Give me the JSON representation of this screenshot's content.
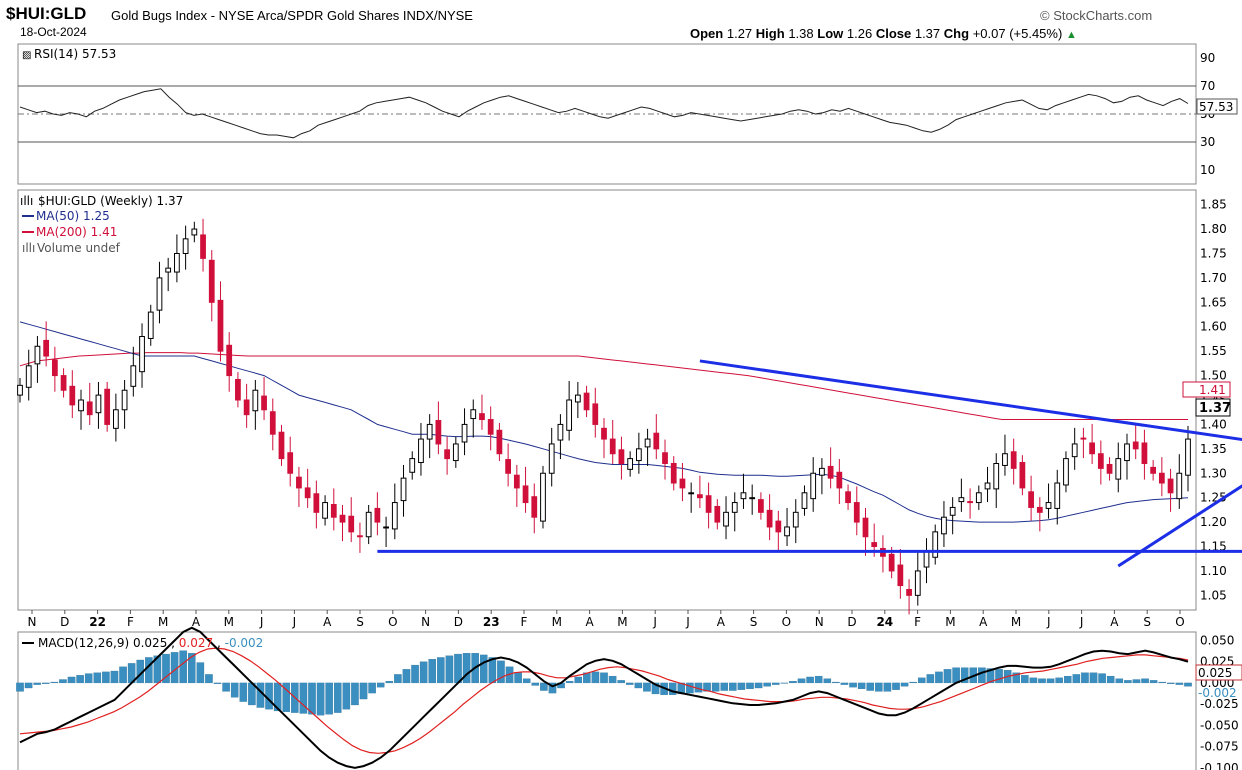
{
  "header": {
    "symbol": "$HUI:GLD",
    "description": "Gold Bugs Index - NYSE Arca/SPDR Gold Shares INDX/NYSE",
    "date": "18-Oct-2024",
    "source": "© StockCharts.com",
    "ohlc": {
      "open_label": "Open",
      "open": "1.27",
      "high_label": "High",
      "high": "1.38",
      "low_label": "Low",
      "low": "1.26",
      "close_label": "Close",
      "close": "1.37",
      "chg_label": "Chg",
      "chg": "+0.07 (+5.45%)"
    }
  },
  "chart_data": {
    "type": "candlestick",
    "x_labels": [
      "N",
      "D",
      "22",
      "F",
      "M",
      "A",
      "M",
      "J",
      "J",
      "A",
      "S",
      "O",
      "N",
      "D",
      "23",
      "F",
      "M",
      "A",
      "M",
      "J",
      "J",
      "A",
      "S",
      "O",
      "N",
      "D",
      "24",
      "F",
      "M",
      "A",
      "M",
      "J",
      "J",
      "A",
      "S",
      "O"
    ],
    "rsi": {
      "legend": "RSI(14) 57.53",
      "last": "57.53",
      "ticks": [
        90,
        70,
        50,
        30,
        10
      ],
      "overbought": 70,
      "oversold": 30,
      "ylim": [
        0,
        100
      ],
      "values": [
        55,
        53,
        51,
        52,
        50,
        49,
        51,
        50,
        48,
        52,
        54,
        57,
        60,
        62,
        64,
        66,
        67,
        68,
        62,
        57,
        51,
        49,
        50,
        48,
        46,
        44,
        42,
        40,
        38,
        36,
        35,
        35,
        34,
        33,
        36,
        38,
        42,
        44,
        46,
        48,
        50,
        52,
        56,
        58,
        59,
        60,
        61,
        62,
        60,
        58,
        55,
        52,
        50,
        48,
        52,
        55,
        58,
        60,
        62,
        63,
        61,
        59,
        57,
        55,
        53,
        51,
        52,
        54,
        52,
        50,
        48,
        47,
        49,
        51,
        53,
        55,
        54,
        52,
        50,
        48,
        49,
        51,
        50,
        49,
        48,
        47,
        46,
        45,
        46,
        47,
        48,
        49,
        50,
        52,
        53,
        52,
        50,
        51,
        53,
        52,
        54,
        52,
        50,
        48,
        46,
        44,
        43,
        42,
        40,
        38,
        37,
        39,
        42,
        46,
        48,
        50,
        52,
        54,
        56,
        58,
        59,
        60,
        57,
        54,
        53,
        56,
        58,
        60,
        62,
        64,
        63,
        61,
        58,
        59,
        62,
        63,
        60,
        58,
        56,
        59,
        61,
        57.5
      ]
    },
    "price": {
      "legend_title": "$HUI:GLD (Weekly) 1.37",
      "ma50_legend": "MA(50) 1.25",
      "ma200_legend": "MA(200) 1.41",
      "volume_legend": "Volume undef",
      "ticks": [
        1.85,
        1.8,
        1.75,
        1.7,
        1.65,
        1.6,
        1.55,
        1.5,
        1.45,
        1.4,
        1.35,
        1.3,
        1.25,
        1.2,
        1.15,
        1.1,
        1.05
      ],
      "ylim": [
        1.02,
        1.88
      ],
      "last_close": "1.37",
      "ma200_label": "1.41",
      "colors": {
        "up": "#000000",
        "down": "#d0103a",
        "ma50": "#1f2f8f",
        "ma200": "#d0103a",
        "trend": "#1c2ee6"
      },
      "closes": [
        1.48,
        1.52,
        1.56,
        1.54,
        1.5,
        1.47,
        1.44,
        1.45,
        1.42,
        1.46,
        1.4,
        1.43,
        1.47,
        1.52,
        1.58,
        1.63,
        1.7,
        1.72,
        1.75,
        1.78,
        1.8,
        1.74,
        1.65,
        1.55,
        1.5,
        1.45,
        1.42,
        1.47,
        1.43,
        1.38,
        1.33,
        1.3,
        1.27,
        1.25,
        1.22,
        1.24,
        1.21,
        1.2,
        1.18,
        1.17,
        1.22,
        1.2,
        1.19,
        1.24,
        1.29,
        1.33,
        1.37,
        1.4,
        1.36,
        1.33,
        1.36,
        1.4,
        1.43,
        1.41,
        1.38,
        1.34,
        1.3,
        1.27,
        1.24,
        1.21,
        1.3,
        1.36,
        1.4,
        1.45,
        1.46,
        1.43,
        1.4,
        1.37,
        1.34,
        1.32,
        1.33,
        1.35,
        1.37,
        1.35,
        1.32,
        1.28,
        1.27,
        1.26,
        1.25,
        1.22,
        1.2,
        1.22,
        1.24,
        1.26,
        1.25,
        1.22,
        1.19,
        1.18,
        1.19,
        1.22,
        1.26,
        1.3,
        1.31,
        1.29,
        1.27,
        1.24,
        1.2,
        1.17,
        1.15,
        1.13,
        1.1,
        1.07,
        1.05,
        1.1,
        1.14,
        1.18,
        1.21,
        1.23,
        1.25,
        1.24,
        1.26,
        1.28,
        1.32,
        1.34,
        1.31,
        1.27,
        1.23,
        1.22,
        1.24,
        1.28,
        1.33,
        1.36,
        1.37,
        1.34,
        1.31,
        1.3,
        1.33,
        1.36,
        1.35,
        1.32,
        1.3,
        1.28,
        1.26,
        1.3,
        1.37
      ],
      "ma50": [
        1.61,
        1.605,
        1.6,
        1.595,
        1.59,
        1.585,
        1.58,
        1.575,
        1.57,
        1.565,
        1.56,
        1.555,
        1.55,
        1.545,
        1.54,
        1.54,
        1.54,
        1.54,
        1.54,
        1.54,
        1.54,
        1.535,
        1.53,
        1.525,
        1.52,
        1.515,
        1.51,
        1.505,
        1.5,
        1.49,
        1.48,
        1.47,
        1.46,
        1.455,
        1.45,
        1.445,
        1.44,
        1.435,
        1.43,
        1.42,
        1.41,
        1.4,
        1.395,
        1.39,
        1.385,
        1.38,
        1.38,
        1.38,
        1.378,
        1.376,
        1.375,
        1.375,
        1.376,
        1.376,
        1.375,
        1.372,
        1.368,
        1.364,
        1.36,
        1.355,
        1.35,
        1.345,
        1.34,
        1.335,
        1.33,
        1.326,
        1.322,
        1.32,
        1.318,
        1.318,
        1.318,
        1.318,
        1.318,
        1.316,
        1.314,
        1.312,
        1.31,
        1.306,
        1.302,
        1.3,
        1.298,
        1.297,
        1.296,
        1.296,
        1.296,
        1.296,
        1.295,
        1.294,
        1.294,
        1.295,
        1.296,
        1.297,
        1.298,
        1.296,
        1.292,
        1.285,
        1.278,
        1.27,
        1.262,
        1.255,
        1.245,
        1.235,
        1.225,
        1.218,
        1.212,
        1.208,
        1.205,
        1.203,
        1.202,
        1.201,
        1.2,
        1.2,
        1.2,
        1.2,
        1.2,
        1.201,
        1.202,
        1.203,
        1.205,
        1.208,
        1.212,
        1.216,
        1.22,
        1.224,
        1.228,
        1.232,
        1.236,
        1.24,
        1.242,
        1.244,
        1.246,
        1.247,
        1.248,
        1.249,
        1.25
      ],
      "ma200": [
        1.52,
        1.525,
        1.53,
        1.532,
        1.534,
        1.536,
        1.538,
        1.54,
        1.541,
        1.542,
        1.543,
        1.544,
        1.545,
        1.546,
        1.546,
        1.547,
        1.547,
        1.547,
        1.547,
        1.547,
        1.546,
        1.546,
        1.545,
        1.544,
        1.543,
        1.542,
        1.541,
        1.54,
        1.54,
        1.54,
        1.54,
        1.54,
        1.54,
        1.54,
        1.54,
        1.54,
        1.54,
        1.54,
        1.54,
        1.54,
        1.54,
        1.54,
        1.54,
        1.54,
        1.54,
        1.54,
        1.54,
        1.54,
        1.54,
        1.54,
        1.54,
        1.54,
        1.54,
        1.54,
        1.54,
        1.54,
        1.54,
        1.54,
        1.54,
        1.54,
        1.54,
        1.54,
        1.54,
        1.54,
        1.54,
        1.54,
        1.54,
        1.538,
        1.536,
        1.534,
        1.532,
        1.53,
        1.528,
        1.526,
        1.524,
        1.522,
        1.52,
        1.518,
        1.516,
        1.514,
        1.512,
        1.51,
        1.508,
        1.506,
        1.504,
        1.502,
        1.5,
        1.497,
        1.494,
        1.491,
        1.488,
        1.485,
        1.482,
        1.479,
        1.476,
        1.473,
        1.47,
        1.467,
        1.464,
        1.461,
        1.458,
        1.455,
        1.452,
        1.449,
        1.446,
        1.443,
        1.44,
        1.437,
        1.434,
        1.431,
        1.428,
        1.425,
        1.422,
        1.419,
        1.416,
        1.413,
        1.41,
        1.41,
        1.41,
        1.41,
        1.41,
        1.41,
        1.41,
        1.41,
        1.41,
        1.41,
        1.41,
        1.41,
        1.41,
        1.41,
        1.41,
        1.41,
        1.41,
        1.41,
        1.41,
        1.41,
        1.41,
        1.41,
        1.41
      ],
      "trendlines": [
        {
          "name": "support",
          "from": [
            41,
            1.14
          ],
          "to": [
            140,
            1.14
          ]
        },
        {
          "name": "resistance",
          "from": [
            78,
            1.53
          ],
          "to": [
            140,
            1.37
          ]
        },
        {
          "name": "rising-support",
          "from": [
            126,
            1.11
          ],
          "to": [
            140,
            1.27
          ]
        }
      ]
    },
    "macd": {
      "legend_prefix": "MACD(12,26,9)",
      "macd_value": "0.025",
      "signal_value": "0.027",
      "hist_value": "-0.002",
      "ticks": [
        "0.050",
        "0.025",
        "0.000",
        "-0.025",
        "-0.050",
        "-0.075",
        "-0.100"
      ],
      "ylim": [
        -0.105,
        0.06
      ],
      "label_macd": "0.025",
      "label_hist": "-0.002",
      "colors": {
        "macd": "#000000",
        "signal": "#e02020",
        "hist": "#3a8fc0"
      },
      "macd": [
        -0.07,
        -0.065,
        -0.06,
        -0.058,
        -0.055,
        -0.05,
        -0.045,
        -0.04,
        -0.035,
        -0.03,
        -0.025,
        -0.02,
        -0.01,
        0.0,
        0.01,
        0.02,
        0.03,
        0.04,
        0.05,
        0.06,
        0.065,
        0.06,
        0.05,
        0.04,
        0.03,
        0.02,
        0.01,
        0.0,
        -0.01,
        -0.02,
        -0.03,
        -0.04,
        -0.05,
        -0.06,
        -0.07,
        -0.08,
        -0.088,
        -0.094,
        -0.098,
        -0.1,
        -0.098,
        -0.094,
        -0.088,
        -0.08,
        -0.07,
        -0.06,
        -0.05,
        -0.04,
        -0.03,
        -0.02,
        -0.01,
        0.0,
        0.01,
        0.018,
        0.024,
        0.028,
        0.03,
        0.028,
        0.024,
        0.018,
        0.01,
        0.002,
        -0.004,
        0.0,
        0.008,
        0.015,
        0.022,
        0.026,
        0.028,
        0.026,
        0.022,
        0.016,
        0.01,
        0.004,
        -0.002,
        -0.006,
        -0.01,
        -0.012,
        -0.014,
        -0.016,
        -0.018,
        -0.02,
        -0.022,
        -0.024,
        -0.025,
        -0.026,
        -0.026,
        -0.025,
        -0.024,
        -0.022,
        -0.02,
        -0.016,
        -0.012,
        -0.01,
        -0.012,
        -0.016,
        -0.02,
        -0.024,
        -0.028,
        -0.032,
        -0.036,
        -0.038,
        -0.038,
        -0.035,
        -0.03,
        -0.024,
        -0.018,
        -0.012,
        -0.006,
        0.0,
        0.004,
        0.008,
        0.012,
        0.015,
        0.018,
        0.02,
        0.02,
        0.019,
        0.018,
        0.018,
        0.019,
        0.022,
        0.026,
        0.03,
        0.034,
        0.037,
        0.038,
        0.037,
        0.035,
        0.034,
        0.036,
        0.038,
        0.036,
        0.033,
        0.03,
        0.028,
        0.025
      ],
      "signal": [
        -0.06,
        -0.059,
        -0.058,
        -0.057,
        -0.056,
        -0.054,
        -0.052,
        -0.049,
        -0.046,
        -0.042,
        -0.038,
        -0.034,
        -0.029,
        -0.023,
        -0.017,
        -0.01,
        -0.002,
        0.006,
        0.014,
        0.022,
        0.03,
        0.036,
        0.04,
        0.041,
        0.04,
        0.037,
        0.032,
        0.026,
        0.019,
        0.011,
        0.003,
        -0.006,
        -0.015,
        -0.024,
        -0.033,
        -0.042,
        -0.051,
        -0.059,
        -0.067,
        -0.074,
        -0.079,
        -0.082,
        -0.083,
        -0.082,
        -0.08,
        -0.076,
        -0.071,
        -0.065,
        -0.058,
        -0.05,
        -0.042,
        -0.034,
        -0.025,
        -0.017,
        -0.009,
        -0.002,
        0.004,
        0.009,
        0.012,
        0.013,
        0.013,
        0.011,
        0.008,
        0.006,
        0.006,
        0.008,
        0.01,
        0.013,
        0.016,
        0.018,
        0.019,
        0.018,
        0.016,
        0.014,
        0.011,
        0.008,
        0.004,
        0.001,
        -0.002,
        -0.005,
        -0.008,
        -0.01,
        -0.013,
        -0.015,
        -0.017,
        -0.019,
        -0.02,
        -0.021,
        -0.022,
        -0.022,
        -0.022,
        -0.021,
        -0.019,
        -0.018,
        -0.017,
        -0.017,
        -0.018,
        -0.019,
        -0.021,
        -0.023,
        -0.026,
        -0.028,
        -0.03,
        -0.031,
        -0.031,
        -0.03,
        -0.028,
        -0.025,
        -0.022,
        -0.018,
        -0.014,
        -0.01,
        -0.006,
        -0.002,
        0.002,
        0.005,
        0.008,
        0.01,
        0.012,
        0.013,
        0.014,
        0.016,
        0.018,
        0.02,
        0.022,
        0.025,
        0.027,
        0.029,
        0.03,
        0.031,
        0.032,
        0.033,
        0.033,
        0.032,
        0.031,
        0.03,
        0.029,
        0.027
      ]
    }
  }
}
